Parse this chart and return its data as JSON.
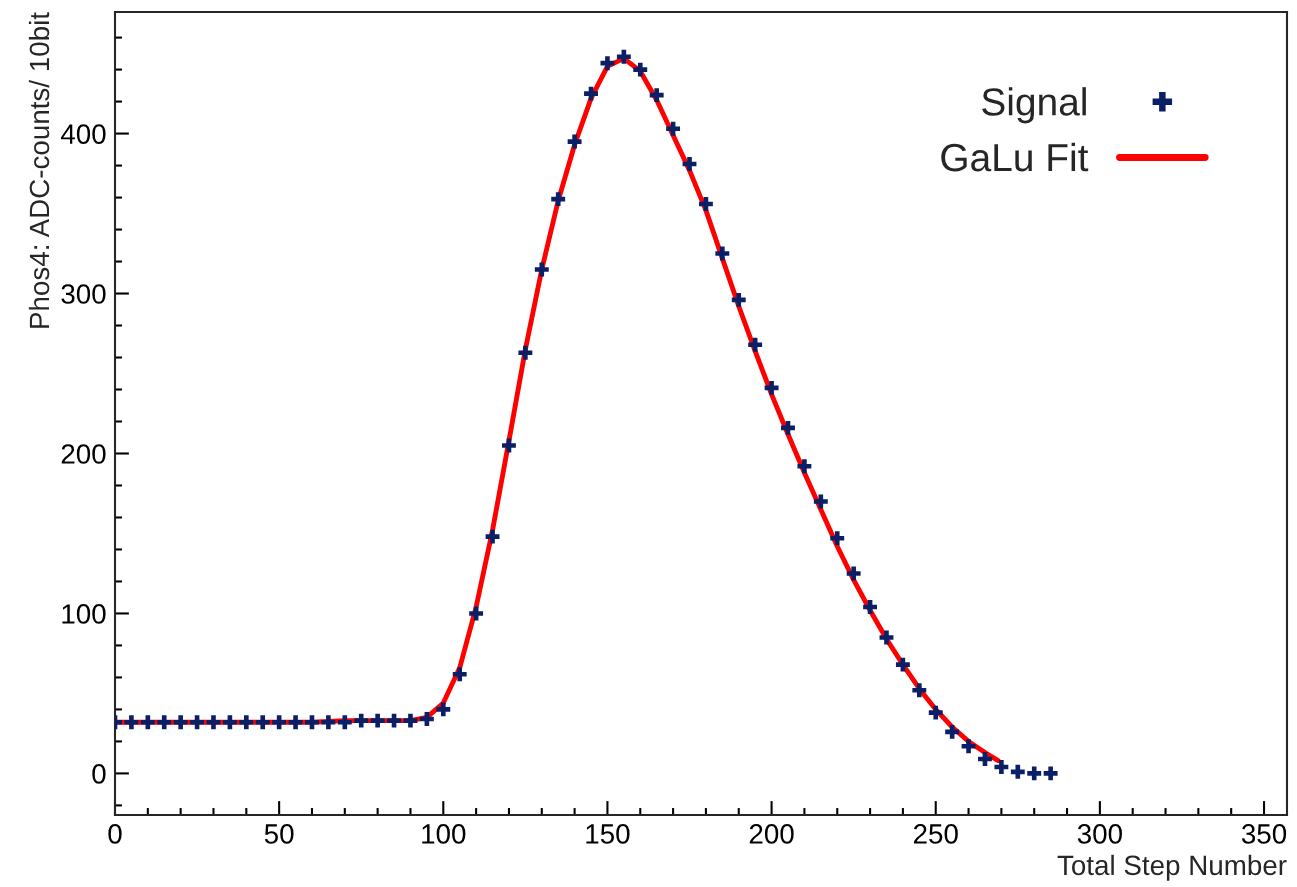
{
  "chart_data": {
    "type": "scatter",
    "xlabel": "Total Step Number",
    "ylabel": "Phos4: ADC-counts/ 10bit",
    "xlim": [
      0,
      357
    ],
    "ylim": [
      -26,
      476
    ],
    "xticks": [
      0,
      {
        "value": 10,
        "label": null
      },
      {
        "value": 20,
        "label": null
      },
      {
        "value": 30,
        "label": null
      },
      {
        "value": 40,
        "label": null
      },
      50,
      {
        "value": 60,
        "label": null
      },
      {
        "value": 70,
        "label": null
      },
      {
        "value": 80,
        "label": null
      },
      {
        "value": 90,
        "label": null
      },
      100,
      {
        "value": 110,
        "label": null
      },
      {
        "value": 120,
        "label": null
      },
      {
        "value": 130,
        "label": null
      },
      {
        "value": 140,
        "label": null
      },
      150,
      {
        "value": 160,
        "label": null
      },
      {
        "value": 170,
        "label": null
      },
      {
        "value": 180,
        "label": null
      },
      {
        "value": 190,
        "label": null
      },
      200,
      {
        "value": 210,
        "label": null
      },
      {
        "value": 220,
        "label": null
      },
      {
        "value": 230,
        "label": null
      },
      {
        "value": 240,
        "label": null
      },
      250,
      {
        "value": 260,
        "label": null
      },
      {
        "value": 270,
        "label": null
      },
      {
        "value": 280,
        "label": null
      },
      {
        "value": 290,
        "label": null
      },
      300,
      {
        "value": 310,
        "label": null
      },
      {
        "value": 320,
        "label": null
      },
      {
        "value": 330,
        "label": null
      },
      {
        "value": 340,
        "label": null
      },
      350
    ],
    "yticks": [
      {
        "value": -20,
        "label": null
      },
      0,
      {
        "value": 20,
        "label": null
      },
      {
        "value": 40,
        "label": null
      },
      {
        "value": 60,
        "label": null
      },
      {
        "value": 80,
        "label": null
      },
      100,
      {
        "value": 120,
        "label": null
      },
      {
        "value": 140,
        "label": null
      },
      {
        "value": 160,
        "label": null
      },
      {
        "value": 180,
        "label": null
      },
      200,
      {
        "value": 220,
        "label": null
      },
      {
        "value": 240,
        "label": null
      },
      {
        "value": 260,
        "label": null
      },
      {
        "value": 280,
        "label": null
      },
      300,
      {
        "value": 320,
        "label": null
      },
      {
        "value": 340,
        "label": null
      },
      {
        "value": 360,
        "label": null
      },
      {
        "value": 380,
        "label": null
      },
      400,
      {
        "value": 420,
        "label": null
      },
      {
        "value": 440,
        "label": null
      },
      {
        "value": 460,
        "label": null
      }
    ],
    "legend": "top right",
    "grid": false,
    "series": [
      {
        "name": "Signal",
        "type": "scatter",
        "marker": "cross",
        "color": "#0a1f66",
        "x": [
          0,
          5,
          10,
          15,
          20,
          25,
          30,
          35,
          40,
          45,
          50,
          55,
          60,
          65,
          70,
          75,
          80,
          85,
          90,
          95,
          100,
          105,
          110,
          115,
          120,
          125,
          130,
          135,
          140,
          145,
          150,
          155,
          160,
          165,
          170,
          175,
          180,
          185,
          190,
          195,
          200,
          205,
          210,
          215,
          220,
          225,
          230,
          235,
          240,
          245,
          250,
          255,
          260,
          265,
          270,
          275,
          280,
          285
        ],
        "values": [
          32,
          32,
          32,
          32,
          32,
          32,
          32,
          32,
          32,
          32,
          32,
          32,
          32,
          32,
          32,
          33,
          33,
          33,
          33,
          34,
          40,
          62,
          100,
          148,
          205,
          263,
          315,
          359,
          395,
          425,
          444,
          448,
          440,
          424,
          403,
          381,
          356,
          325,
          296,
          268,
          241,
          216,
          192,
          170,
          147,
          125,
          104,
          85,
          68,
          52,
          38,
          26,
          17,
          9,
          4,
          1,
          0,
          0
        ]
      },
      {
        "name": "GaLu Fit",
        "type": "line",
        "marker": "none",
        "line_style": "solid",
        "color": "#ff0000",
        "x": [
          0,
          10,
          20,
          30,
          40,
          50,
          60,
          70,
          80,
          90,
          95,
          100,
          105,
          110,
          115,
          120,
          125,
          130,
          135,
          140,
          145,
          150,
          155,
          160,
          165,
          170,
          175,
          180,
          185,
          190,
          195,
          200,
          205,
          210,
          215,
          220,
          225,
          230,
          235,
          240,
          245,
          250,
          255,
          260,
          265,
          269
        ],
        "values": [
          32,
          32,
          32,
          32,
          32,
          32,
          32,
          33,
          33,
          33,
          35,
          44,
          66,
          104,
          152,
          208,
          265,
          315,
          358,
          393,
          422,
          442,
          447,
          439,
          421,
          399,
          377,
          352,
          322,
          292,
          264,
          237,
          212,
          188,
          165,
          142,
          121,
          102,
          84,
          68,
          53,
          40,
          29,
          20,
          13,
          8
        ]
      }
    ]
  }
}
